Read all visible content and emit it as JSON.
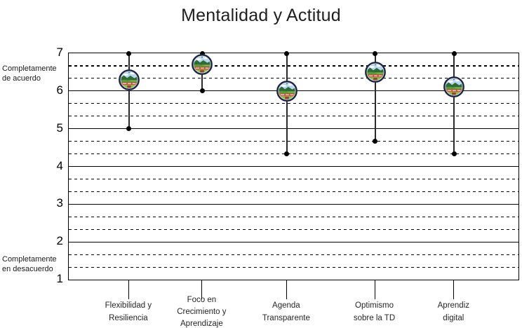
{
  "title": "Mentalidad y Actitud",
  "y_axis": {
    "tick_labels": [
      "7",
      "6",
      "5",
      "4",
      "3",
      "2",
      "1"
    ],
    "top_annotation": [
      "Completamente",
      "de acuerdo"
    ],
    "bottom_annotation": [
      "Completamente",
      "en desacuerdo"
    ]
  },
  "chart_data": {
    "type": "scatter",
    "subtype": "high-low-range-with-mean-marker",
    "title": "Mentalidad y Actitud",
    "categories": [
      "Flexibilidad y Resiliencia",
      "Foco en Crecimiento y Aprendizaje",
      "Agenda Transparente",
      "Optimismo sobre la TD",
      "Aprendiz digital"
    ],
    "category_label_lines": [
      [
        "Flexibilidad y",
        "Resiliencia"
      ],
      [
        "Foco en",
        "Crecimiento y",
        "Aprendizaje"
      ],
      [
        "Agenda",
        "Transparente"
      ],
      [
        "Optimismo",
        "sobre la TD"
      ],
      [
        "Aprendiz",
        "digital"
      ]
    ],
    "points": [
      {
        "category": "Flexibilidad y Resiliencia",
        "high": 7,
        "low": 5,
        "mean": 6.3
      },
      {
        "category": "Foco en Crecimiento y Aprendizaje",
        "high": 7,
        "low": 6,
        "mean": 6.7
      },
      {
        "category": "Agenda Transparente",
        "high": 7,
        "low": 4.33,
        "mean": 6.0
      },
      {
        "category": "Optimismo sobre la TD",
        "high": 7,
        "low": 4.67,
        "mean": 6.5
      },
      {
        "category": "Aprendiz digital",
        "high": 7,
        "low": 4.33,
        "mean": 6.1
      }
    ],
    "ylim": [
      1,
      7
    ],
    "y_major_ticks": [
      1,
      2,
      3,
      4,
      5,
      6,
      7
    ],
    "y_minor_step": 0.3333,
    "grid": {
      "major": "solid",
      "minor": "dashed"
    },
    "legend": "none",
    "marker": "landscape-emblem-badge",
    "y_axis_annotations": {
      "top": "Completamente de acuerdo",
      "bottom": "Completamente en desacuerdo"
    },
    "colors": {
      "grid": "#000000",
      "range_line": "#2b2b2b",
      "point_dot": "#000000",
      "badge_ring": "#1d2742",
      "badge_sky": "#b5d8f0",
      "badge_mountain": "#2e6b35",
      "badge_field": "#8abc52",
      "badge_band": "#c8503a",
      "badge_building": "#8a4a2e"
    }
  }
}
